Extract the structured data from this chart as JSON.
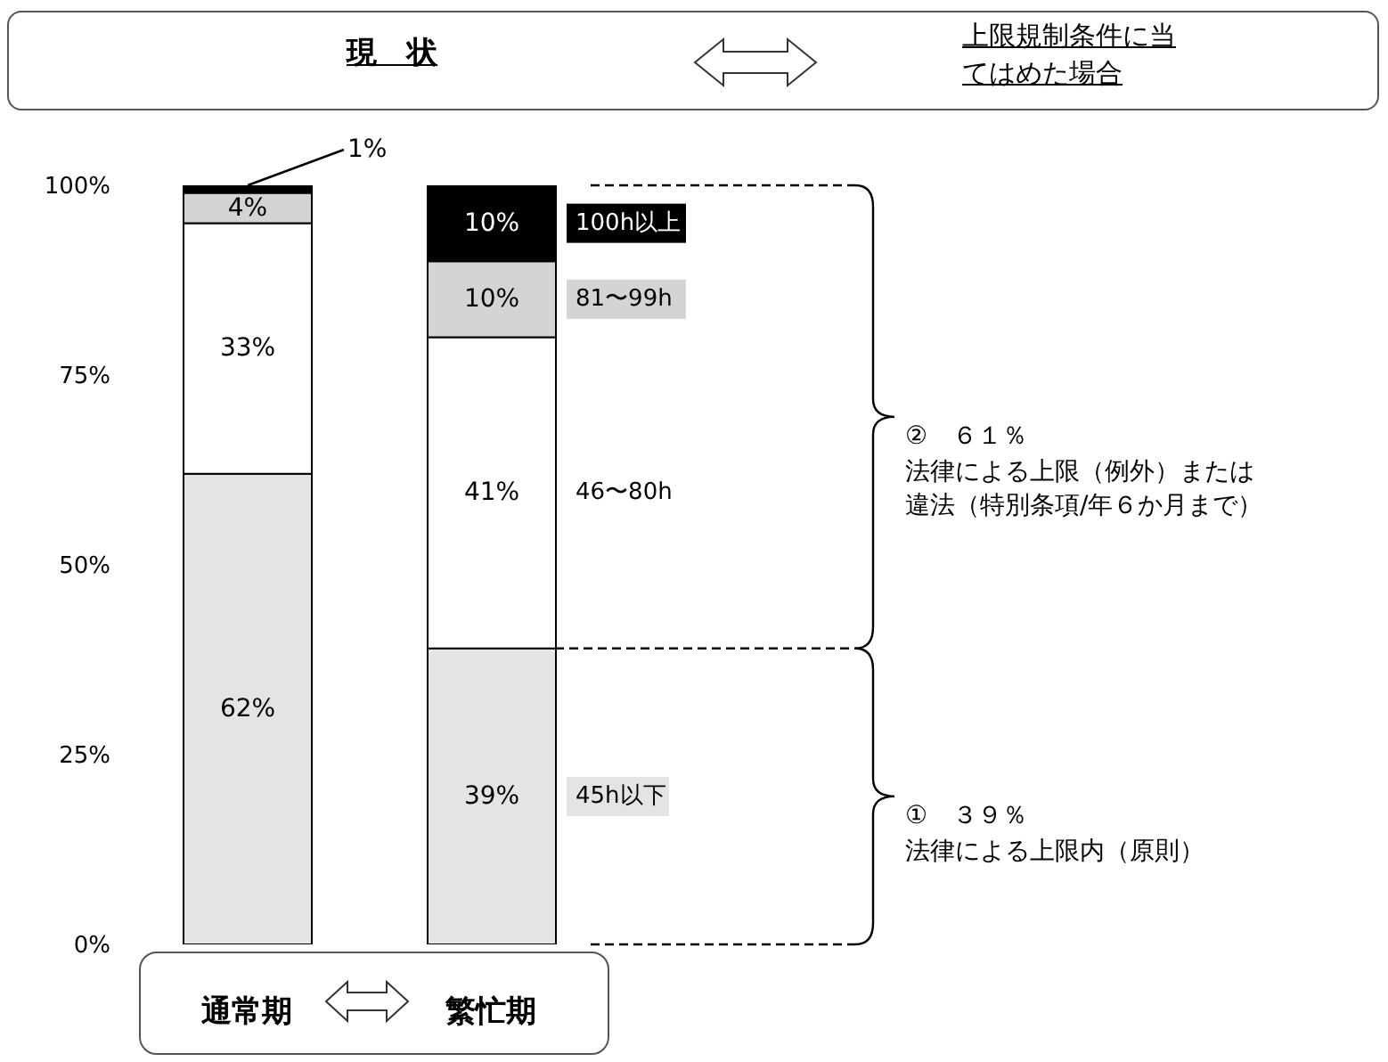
{
  "chart_data": {
    "type": "bar",
    "stacked": true,
    "title": "現　状",
    "subtitle": "上限規制条件に当てはめた場合",
    "categories": [
      "通常期",
      "繁忙期"
    ],
    "series": [
      {
        "name": "45h以下",
        "color": "#e4e4e4",
        "values": [
          62,
          39
        ],
        "value_labels": [
          "62%",
          "39%"
        ]
      },
      {
        "name": "46〜80h",
        "color": "#ffffff",
        "values": [
          33,
          41
        ],
        "value_labels": [
          "33%",
          "41%"
        ]
      },
      {
        "name": "81〜99h",
        "color": "#d4d4d4",
        "values": [
          4,
          10
        ],
        "value_labels": [
          "4%",
          "10%"
        ]
      },
      {
        "name": "100h以上",
        "color": "#000000",
        "values": [
          1,
          10
        ],
        "value_labels": [
          "1%",
          "10%"
        ]
      }
    ],
    "ylim": [
      0,
      100
    ],
    "yticks": [
      {
        "value": 0,
        "label": "0%"
      },
      {
        "value": 25,
        "label": "25%"
      },
      {
        "value": 50,
        "label": "50%"
      },
      {
        "value": 75,
        "label": "75%"
      },
      {
        "value": 100,
        "label": "100%"
      }
    ],
    "ref_lines": [
      {
        "axis": "y",
        "value": 39,
        "line_style": "dashed"
      }
    ],
    "annotations": [
      "②　６１％",
      "法律による上限（例外）または違法（特別条項/年６か月まで）",
      "①　３９％",
      "法律による上限内（原則）"
    ]
  }
}
